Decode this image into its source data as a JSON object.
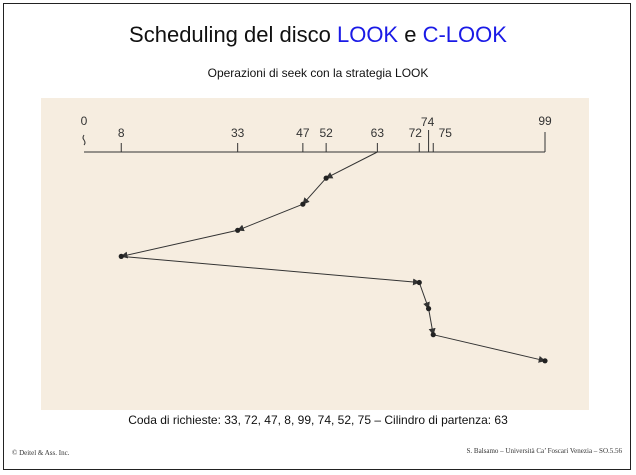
{
  "slide": {
    "title_prefix": "Scheduling del disco ",
    "title_look": "LOOK",
    "title_mid": " e ",
    "title_clook": "C-LOOK",
    "subtitle": "Operazioni di seek con la strategia LOOK",
    "caption": "Coda di richieste: 33, 72, 47, 8, 99, 74, 52, 75 – Cilindro di partenza: 63",
    "footer_left": "© Deitel & Ass. Inc.",
    "footer_right": "S. Balsamo – Università Ca’ Foscari Venezia – SO.5.56"
  },
  "colors": {
    "accent": "#1a1ae6",
    "figure_background": "#f6ede0",
    "ink": "#333333"
  },
  "diagram": {
    "axis_ticks": [
      0,
      8,
      33,
      47,
      52,
      63,
      72,
      74,
      75,
      99
    ],
    "start_cylinder": 63,
    "service_order": [
      52,
      47,
      33,
      8,
      72,
      74,
      75,
      99
    ]
  }
}
